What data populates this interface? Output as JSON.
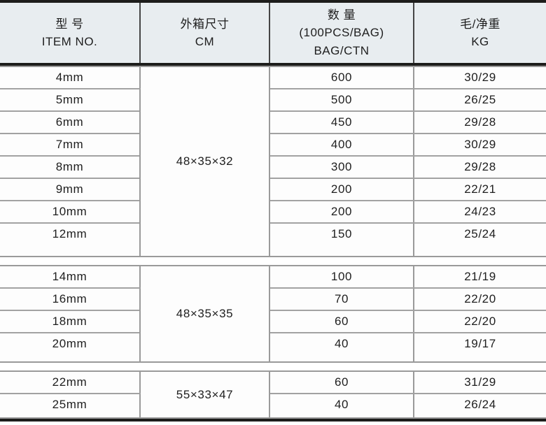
{
  "table": {
    "columns": [
      {
        "lines": [
          "型 号",
          "ITEM NO."
        ]
      },
      {
        "lines": [
          "外箱尺寸",
          "CM"
        ]
      },
      {
        "lines": [
          "数 量",
          "(100PCS/BAG)",
          "BAG/CTN"
        ]
      },
      {
        "lines": [
          "毛/净重",
          "KG"
        ]
      }
    ],
    "groups": [
      {
        "dimension": "48×35×32",
        "rows": [
          {
            "item": "4mm",
            "qty": "600",
            "weight": "30/29"
          },
          {
            "item": "5mm",
            "qty": "500",
            "weight": "26/25"
          },
          {
            "item": "6mm",
            "qty": "450",
            "weight": "29/28"
          },
          {
            "item": "7mm",
            "qty": "400",
            "weight": "30/29"
          },
          {
            "item": "8mm",
            "qty": "300",
            "weight": "29/28"
          },
          {
            "item": "9mm",
            "qty": "200",
            "weight": "22/21"
          },
          {
            "item": "10mm",
            "qty": "200",
            "weight": "24/23"
          },
          {
            "item": "12mm",
            "qty": "150",
            "weight": "25/24"
          }
        ]
      },
      {
        "dimension": "48×35×35",
        "rows": [
          {
            "item": "14mm",
            "qty": "100",
            "weight": "21/19"
          },
          {
            "item": "16mm",
            "qty": "70",
            "weight": "22/20"
          },
          {
            "item": "18mm",
            "qty": "60",
            "weight": "22/20"
          },
          {
            "item": "20mm",
            "qty": "40",
            "weight": "19/17"
          }
        ]
      },
      {
        "dimension": "55×33×47",
        "rows": [
          {
            "item": "22mm",
            "qty": "60",
            "weight": "31/29"
          },
          {
            "item": "25mm",
            "qty": "40",
            "weight": "26/24"
          }
        ]
      }
    ]
  },
  "colors": {
    "header_bg": "#e8edf0",
    "thick_rule": "#1d1d1b",
    "grid_line": "#9a9a9a",
    "text": "#1e1e1e"
  }
}
